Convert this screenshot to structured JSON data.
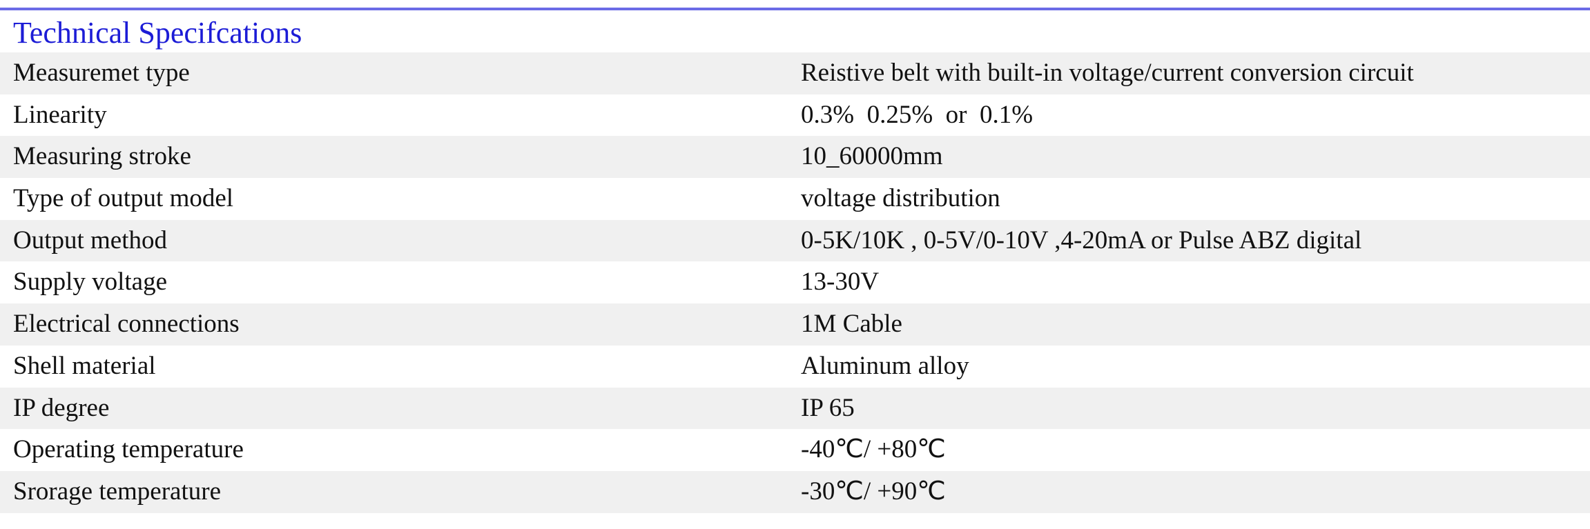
{
  "title": "Technical Specifcations",
  "table": {
    "rows": [
      [
        "Measuremet type",
        "Reistive belt with built-in voltage/current conversion circuit"
      ],
      [
        "Linearity",
        "0.3%  0.25%  or  0.1%"
      ],
      [
        "Measuring stroke",
        "10_60000mm"
      ],
      [
        "Type of output model",
        "voltage distribution"
      ],
      [
        "Output method",
        "0-5K/10K , 0-5V/0-10V ,4-20mA or Pulse ABZ digital"
      ],
      [
        "Supply voltage",
        "13-30V"
      ],
      [
        "Electrical connections",
        "1M Cable"
      ],
      [
        "Shell material",
        "Aluminum alloy"
      ],
      [
        "IP degree",
        "IP 65"
      ],
      [
        "Operating temperature",
        "-40℃/ +80℃"
      ],
      [
        "Srorage temperature",
        "-30℃/ +90℃"
      ]
    ]
  }
}
